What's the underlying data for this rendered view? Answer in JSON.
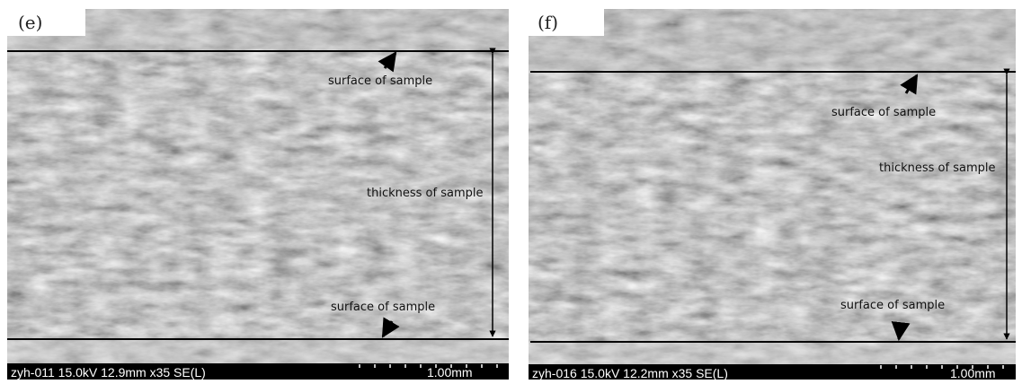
{
  "panels": [
    {
      "label": "(e)",
      "annotations": [
        "surface of sample",
        "thickness of sample",
        "surface of sample"
      ],
      "info": "zyh-011 15.0kV 12.9mm x35 SE(L)",
      "scale": "1.00mm"
    },
    {
      "label": "(f)",
      "annotations": [
        "surface of sample",
        "thickness of sample",
        "surface of sample"
      ],
      "info": "zyh-016 15.0kV 12.2mm x35 SE(L)",
      "scale": "1.00mm"
    }
  ]
}
